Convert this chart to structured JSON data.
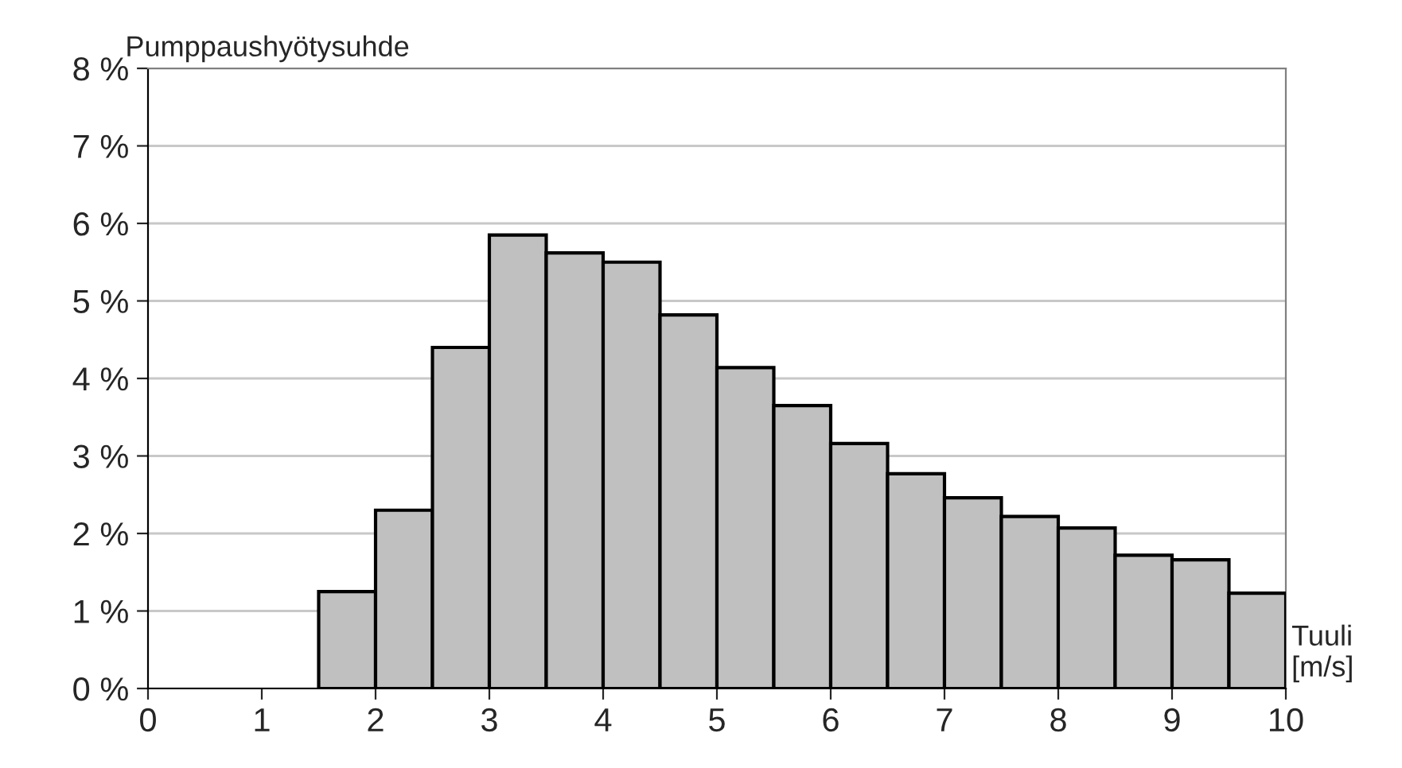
{
  "chart_data": {
    "type": "histogram",
    "ylabel": "Pumppaushyötysuhde",
    "xlabel": "Tuuli\n[m/s]",
    "bins": [
      1.5,
      2,
      2.5,
      3,
      3.5,
      4,
      4.5,
      5,
      5.5,
      6,
      6.5,
      7,
      7.5,
      8,
      8.5,
      9,
      9.5,
      10
    ],
    "values": [
      1.25,
      2.3,
      4.4,
      5.85,
      5.62,
      5.5,
      4.82,
      4.14,
      3.65,
      3.16,
      2.77,
      2.46,
      2.22,
      2.07,
      1.72,
      1.66,
      1.23
    ],
    "color": "#c0c0c0",
    "xlim": [
      0,
      10
    ],
    "xticks": [
      0,
      1,
      2,
      3,
      4,
      5,
      6,
      7,
      8,
      9,
      10
    ],
    "ylim": [
      0,
      8
    ],
    "yticks": [
      {
        "value": 0,
        "label": "0 %"
      },
      {
        "value": 1,
        "label": "1 %"
      },
      {
        "value": 2,
        "label": "2 %"
      },
      {
        "value": 3,
        "label": "3 %"
      },
      {
        "value": 4,
        "label": "4 %"
      },
      {
        "value": 5,
        "label": "5 %"
      },
      {
        "value": 6,
        "label": "6 %"
      },
      {
        "value": 7,
        "label": "7 %"
      },
      {
        "value": 8,
        "label": "8 %"
      }
    ],
    "grid": "y"
  }
}
